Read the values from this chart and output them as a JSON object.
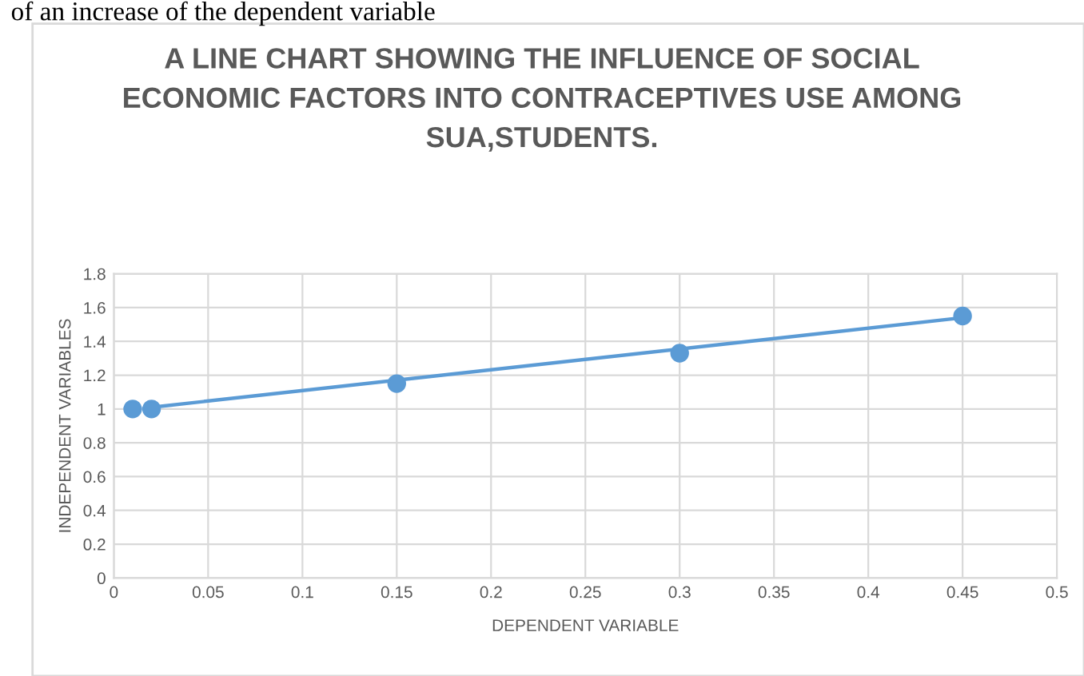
{
  "chart_data": {
    "type": "scatter",
    "title": "A LINE CHART SHOWING THE INFLUENCE OF SOCIAL\nECONOMIC FACTORS INTO CONTRACEPTIVES USE AMONG\nSUA,STUDENTS.",
    "annotations": [
      "of an increase of the dependent variable"
    ],
    "xlabel": "DEPENDENT VARIABLE",
    "ylabel": "INDEPENDENT VARIABLES",
    "series": [
      {
        "color": "#5b9bd5",
        "x": [
          0.01,
          0.02,
          0.15,
          0.3,
          0.45
        ],
        "values": [
          1.0,
          1.0,
          1.15,
          1.33,
          1.55
        ],
        "marker": "circle"
      },
      {
        "type": "line",
        "color": "#5b9bd5",
        "x": [
          0.02,
          0.45
        ],
        "values": [
          1.01,
          1.54
        ]
      }
    ],
    "xlim": [
      0,
      0.5
    ],
    "xticks": [
      0,
      0.05,
      0.1,
      0.15,
      0.2,
      0.25,
      0.3,
      0.35,
      0.4,
      0.45,
      0.5
    ],
    "ylim": [
      0,
      1.8
    ],
    "yticks": [
      0,
      0.2,
      0.4,
      0.6,
      0.8,
      1,
      1.2,
      1.4,
      1.6,
      1.8
    ],
    "grid": true
  }
}
